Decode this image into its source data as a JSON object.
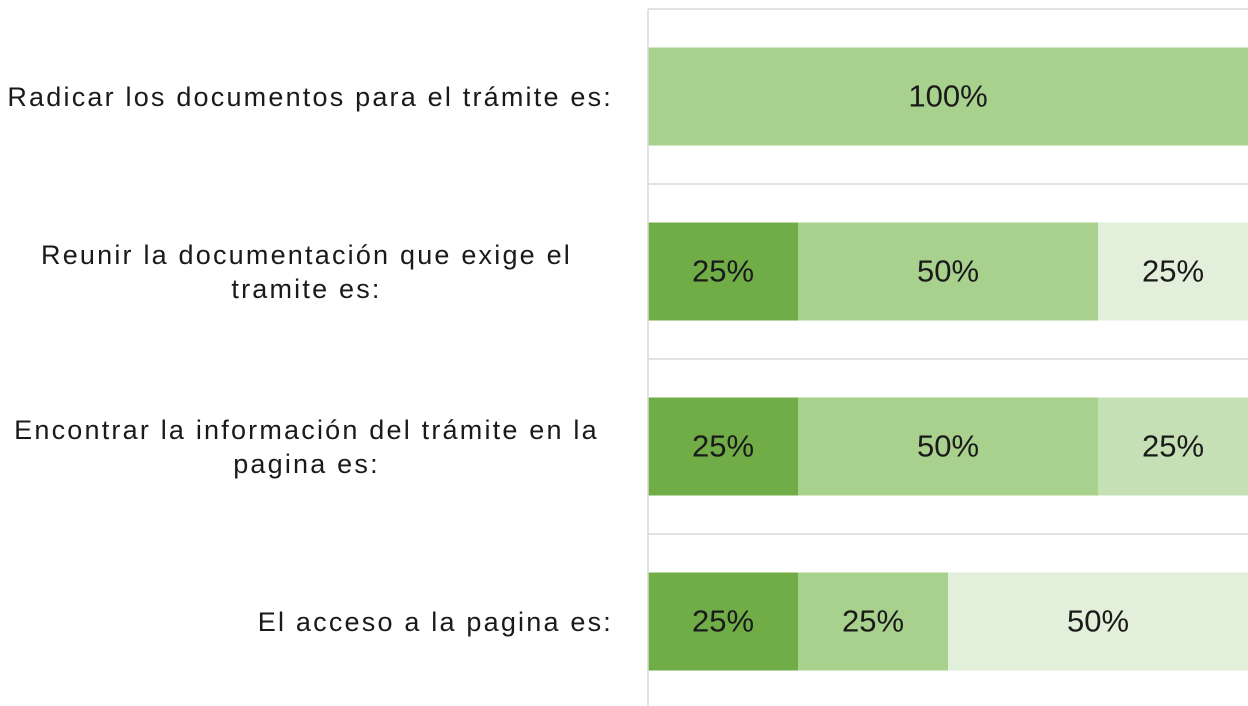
{
  "chart_data": {
    "type": "bar",
    "orientation": "horizontal",
    "stacked": true,
    "categories": [
      "Radicar los documentos para el trámite es:",
      "Reunir la documentación que exige el tramite es:",
      "Encontrar la información del trámite en la pagina es:",
      "El acceso a la pagina es:"
    ],
    "xlim": [
      0,
      100
    ],
    "series": [
      {
        "color": "#70ad47",
        "values": [
          0,
          25,
          25,
          25
        ],
        "value_labels": [
          null,
          "25%",
          "25%",
          "25%"
        ]
      },
      {
        "color": "#a9d18e",
        "values": [
          100,
          50,
          50,
          25
        ],
        "value_labels": [
          "100%",
          "50%",
          "50%",
          "25%"
        ]
      },
      {
        "color": "#c5e0b4",
        "values": [
          0,
          0,
          25,
          0
        ],
        "value_labels": [
          null,
          null,
          "25%",
          null
        ]
      },
      {
        "color": "#e2efda",
        "values": [
          0,
          25,
          0,
          50
        ],
        "value_labels": [
          null,
          "25%",
          null,
          "50%"
        ]
      }
    ]
  }
}
